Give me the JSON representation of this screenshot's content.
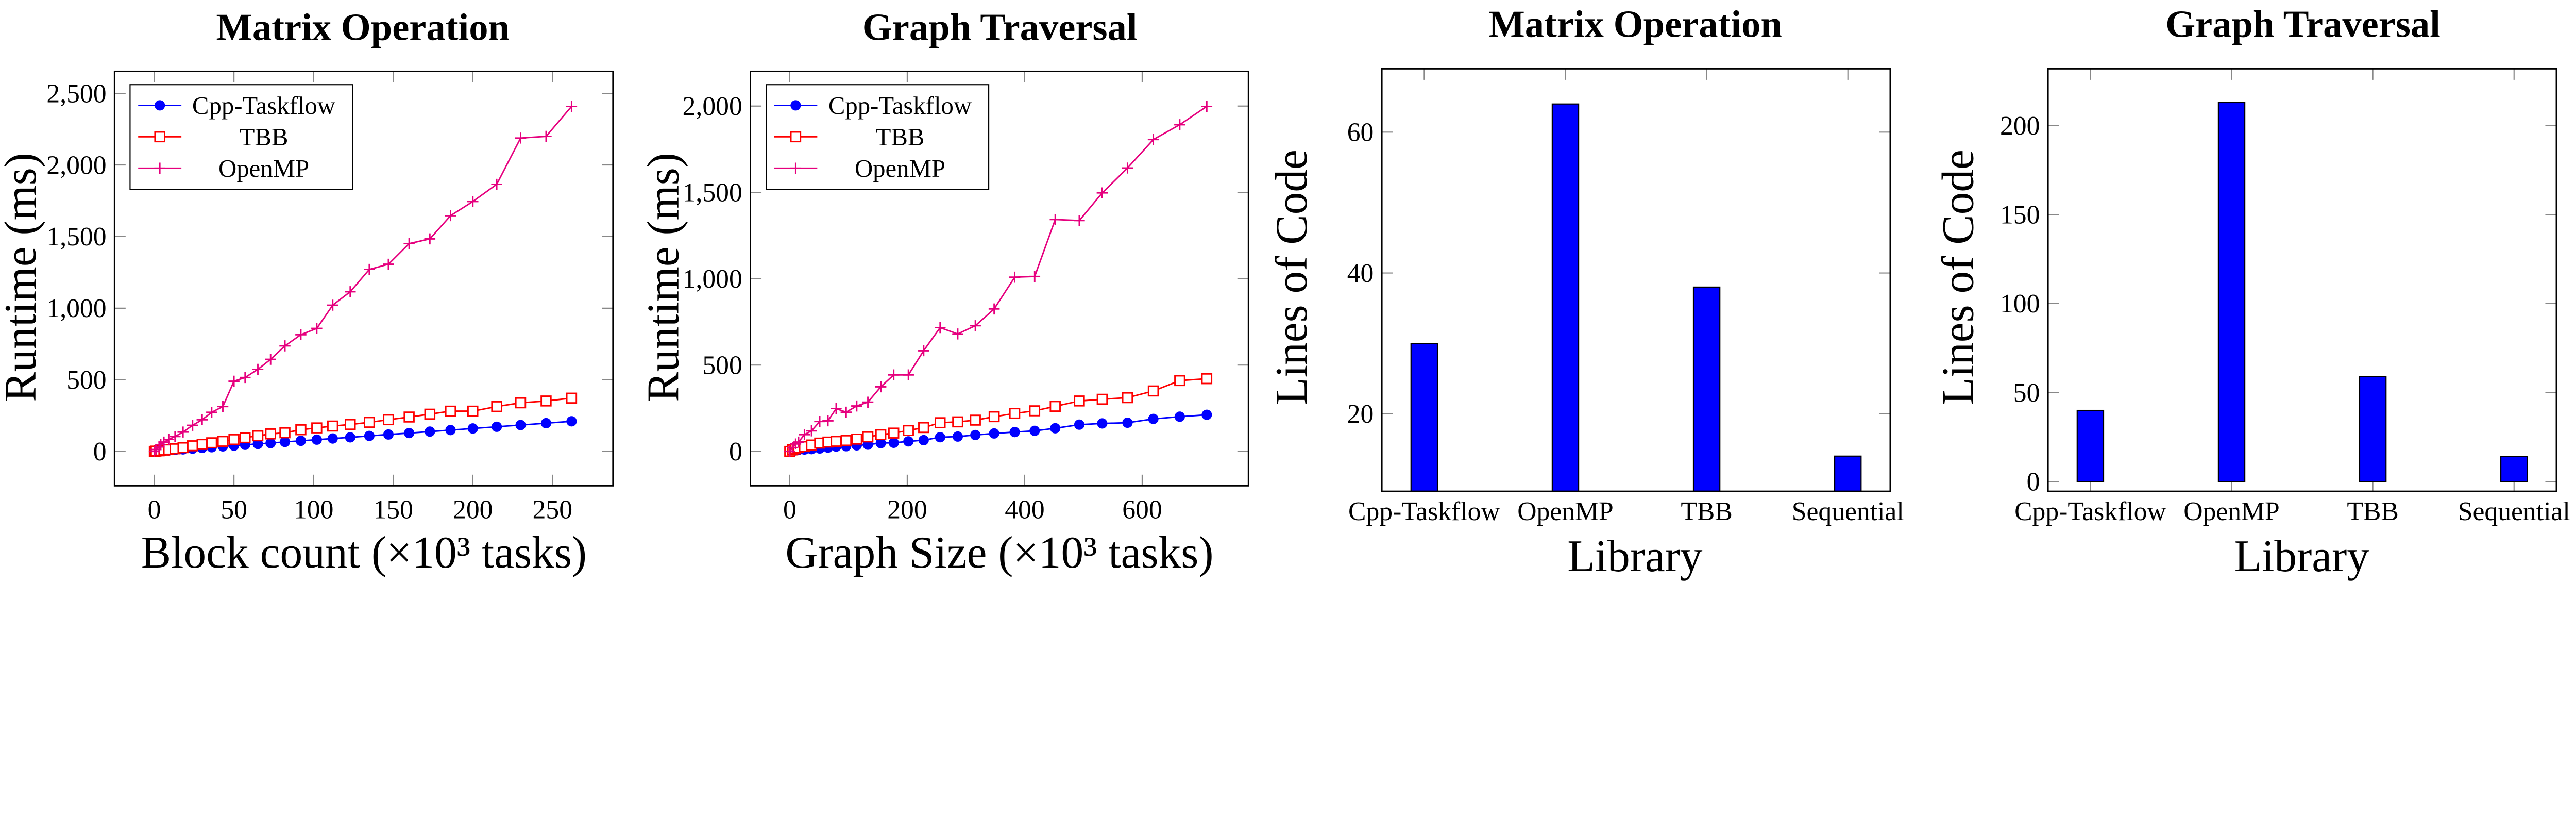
{
  "chart_data": [
    {
      "type": "line",
      "title": "Matrix Operation",
      "xlabel": "Block count (×10³ tasks)",
      "ylabel": "Runtime (ms)",
      "xlim": [
        -25,
        288
      ],
      "ylim": [
        -240,
        2654
      ],
      "xticks": [
        0,
        50,
        100,
        150,
        200,
        250
      ],
      "xtick_labels": [
        "0",
        "50",
        "100",
        "150",
        "200",
        "250"
      ],
      "yticks": [
        0,
        500,
        1000,
        1500,
        2000,
        2500
      ],
      "ytick_labels": [
        "0",
        "500",
        "1,000",
        "1,500",
        "2,000",
        "2,500"
      ],
      "grid": false,
      "legend": "top-left",
      "x": [
        0,
        1,
        3,
        4,
        6,
        9,
        13,
        18,
        24,
        30,
        36,
        43,
        50,
        57,
        65,
        73,
        82,
        92,
        102,
        112,
        123,
        135,
        147,
        160,
        173,
        186,
        200,
        215,
        230,
        246,
        262
      ],
      "series": [
        {
          "name": "Cpp-Taskflow",
          "color": "#0000ff",
          "marker": "circle",
          "values": [
            0,
            1,
            2,
            3,
            5,
            7,
            10,
            14,
            19,
            24,
            29,
            35,
            40,
            46,
            52,
            58,
            66,
            74,
            82,
            90,
            98,
            108,
            118,
            128,
            138,
            149,
            160,
            172,
            184,
            197,
            210
          ]
        },
        {
          "name": "TBB",
          "color": "#ff0000",
          "marker": "square",
          "values": [
            0,
            2,
            4,
            6,
            9,
            13,
            18,
            26,
            39,
            49,
            60,
            70,
            83,
            96,
            109,
            122,
            130,
            151,
            164,
            177,
            188,
            203,
            221,
            240,
            260,
            281,
            281,
            313,
            339,
            352,
            372
          ]
        },
        {
          "name": "OpenMP",
          "color": "#e6007e",
          "marker": "plus",
          "values": [
            0,
            13,
            31,
            47,
            65,
            83,
            104,
            135,
            182,
            221,
            273,
            313,
            490,
            516,
            573,
            643,
            737,
            815,
            859,
            1021,
            1115,
            1271,
            1307,
            1451,
            1484,
            1646,
            1745,
            1865,
            2188,
            2200,
            2409
          ]
        }
      ]
    },
    {
      "type": "line",
      "title": "Graph Traversal",
      "xlabel": "Graph Size (×10³ tasks)",
      "ylabel": "Runtime (ms)",
      "xlim": [
        -67,
        781
      ],
      "ylim": [
        -199,
        2201
      ],
      "xticks": [
        0,
        200,
        400,
        600
      ],
      "xtick_labels": [
        "0",
        "200",
        "400",
        "600"
      ],
      "yticks": [
        0,
        500,
        1000,
        1500,
        2000
      ],
      "ytick_labels": [
        "0",
        "500",
        "1,000",
        "1,500",
        "2,000"
      ],
      "grid": false,
      "legend": "top-left",
      "x": [
        0,
        5,
        10,
        15,
        25,
        37,
        51,
        65,
        79,
        96,
        114,
        133,
        155,
        177,
        202,
        228,
        256,
        286,
        316,
        348,
        383,
        417,
        452,
        493,
        532,
        575,
        619,
        664,
        710
      ],
      "series": [
        {
          "name": "Cpp-Taskflow",
          "color": "#0000ff",
          "marker": "circle",
          "values": [
            0,
            4,
            6,
            9,
            11,
            13,
            17,
            22,
            28,
            30,
            35,
            39,
            48,
            50,
            58,
            65,
            82,
            86,
            95,
            104,
            112,
            119,
            134,
            155,
            162,
            166,
            188,
            201,
            212
          ]
        },
        {
          "name": "TBB",
          "color": "#ff0000",
          "marker": "square",
          "values": [
            0,
            9,
            15,
            22,
            28,
            37,
            48,
            54,
            58,
            63,
            71,
            84,
            97,
            106,
            121,
            138,
            166,
            171,
            181,
            201,
            220,
            235,
            261,
            292,
            302,
            311,
            350,
            410,
            421
          ]
        },
        {
          "name": "OpenMP",
          "color": "#e6007e",
          "marker": "plus",
          "values": [
            0,
            22,
            43,
            54,
            97,
            119,
            173,
            177,
            248,
            227,
            263,
            285,
            374,
            443,
            443,
            583,
            717,
            680,
            728,
            825,
            1009,
            1013,
            1343,
            1337,
            1497,
            1641,
            1806,
            1892,
            1998
          ]
        }
      ]
    },
    {
      "type": "bar",
      "title": "Matrix Operation",
      "xlabel": "Library",
      "ylabel": "Lines of Code",
      "categories": [
        "Cpp-Taskflow",
        "OpenMP",
        "TBB",
        "Sequential"
      ],
      "values": [
        30,
        64,
        38,
        14
      ],
      "ylim": [
        9,
        69
      ],
      "yticks": [
        20,
        40,
        60
      ],
      "ytick_labels": [
        "20",
        "40",
        "60"
      ],
      "grid": false,
      "bar_color": "#0000ff"
    },
    {
      "type": "bar",
      "title": "Graph Traversal",
      "xlabel": "Library",
      "ylabel": "Lines of Code",
      "categories": [
        "Cpp-Taskflow",
        "OpenMP",
        "TBB",
        "Sequential"
      ],
      "values": [
        40,
        213,
        59,
        14
      ],
      "ylim": [
        -5.5,
        232
      ],
      "yticks": [
        0,
        50,
        100,
        150,
        200
      ],
      "ytick_labels": [
        "0",
        "50",
        "100",
        "150",
        "200"
      ],
      "grid": false,
      "bar_color": "#0000ff"
    }
  ]
}
